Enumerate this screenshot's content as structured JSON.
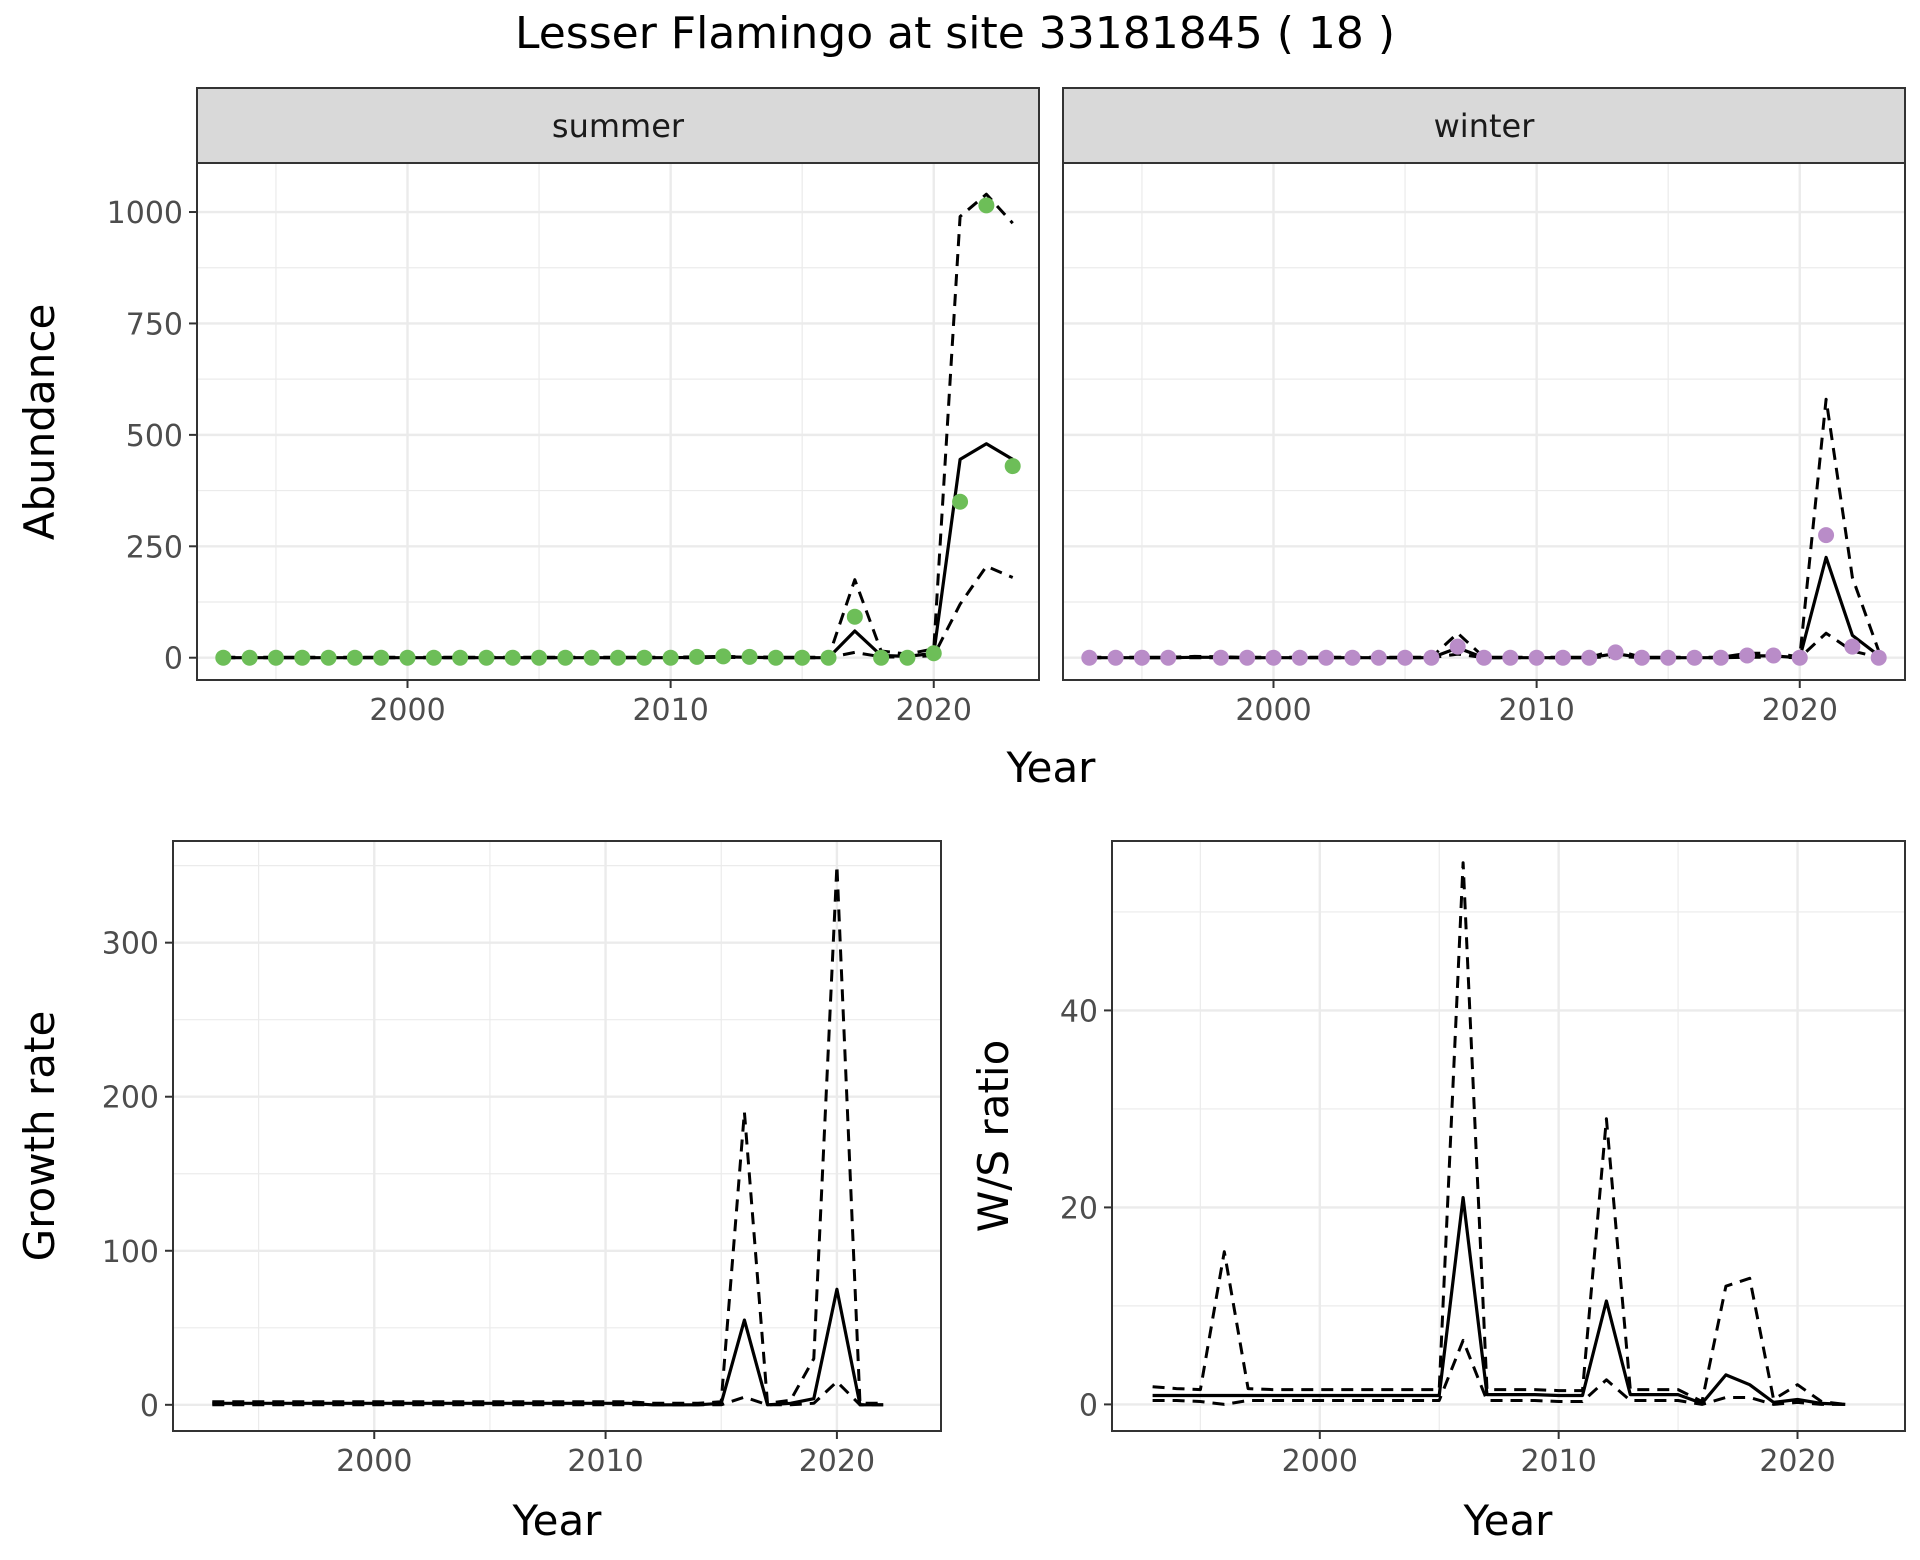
{
  "figure": {
    "title": "Lesser Flamingo at site 33181845 ( 18 )",
    "background": "#ffffff"
  },
  "colors": {
    "summer_points": "#6DBE58",
    "winter_points": "#B98CC8",
    "line": "#000000",
    "grid": "#EBEBEB",
    "strip_fill": "#D9D9D9",
    "axis_text": "#4D4D4D"
  },
  "chart_data": [
    {
      "type": "line",
      "panel": "abundance",
      "facets": [
        "summer",
        "winter"
      ],
      "xlabel": "Year",
      "ylabel": "Abundance",
      "xlim": [
        1992,
        2024
      ],
      "ylim": [
        -50,
        1110
      ],
      "xticks": [
        2000,
        2010,
        2020
      ],
      "yticks": [
        0,
        250,
        500,
        750,
        1000
      ],
      "grid": true,
      "series": [
        {
          "facet": "summer",
          "x": [
            1993,
            1994,
            1995,
            1996,
            1997,
            1998,
            1999,
            2000,
            2001,
            2002,
            2003,
            2004,
            2005,
            2006,
            2007,
            2008,
            2009,
            2010,
            2011,
            2012,
            2013,
            2014,
            2015,
            2016,
            2017,
            2018,
            2019,
            2020,
            2021,
            2022,
            2023
          ],
          "observed": [
            0,
            0,
            0,
            0,
            0,
            0,
            0,
            0,
            0,
            0,
            0,
            0,
            0,
            0,
            0,
            0,
            0,
            0,
            2,
            3,
            2,
            0,
            0,
            0,
            92,
            0,
            0,
            10,
            350,
            1015,
            430
          ],
          "fit": [
            0,
            0,
            0,
            0,
            0,
            0,
            0,
            0,
            0,
            0,
            0,
            0,
            0,
            0,
            0,
            0,
            0,
            0,
            1,
            2,
            1,
            0,
            0,
            0,
            60,
            5,
            3,
            10,
            445,
            480,
            445
          ],
          "upper": [
            1,
            1,
            1,
            1,
            1,
            1,
            1,
            1,
            1,
            1,
            1,
            1,
            1,
            1,
            1,
            1,
            1,
            1,
            2,
            3,
            2,
            1,
            1,
            1,
            175,
            15,
            8,
            20,
            990,
            1040,
            975
          ],
          "lower": [
            0,
            0,
            0,
            0,
            0,
            0,
            0,
            0,
            0,
            0,
            0,
            0,
            0,
            0,
            0,
            0,
            0,
            0,
            0,
            1,
            0,
            0,
            0,
            0,
            12,
            2,
            1,
            5,
            120,
            205,
            180
          ]
        },
        {
          "facet": "winter",
          "x": [
            1993,
            1994,
            1995,
            1996,
            1997,
            1998,
            1999,
            2000,
            2001,
            2002,
            2003,
            2004,
            2005,
            2006,
            2007,
            2008,
            2009,
            2010,
            2011,
            2012,
            2013,
            2014,
            2015,
            2016,
            2017,
            2018,
            2019,
            2020,
            2021,
            2022,
            2023
          ],
          "observed": [
            0,
            0,
            0,
            0,
            null,
            0,
            0,
            0,
            0,
            0,
            0,
            0,
            0,
            0,
            25,
            0,
            0,
            0,
            0,
            0,
            12,
            0,
            0,
            0,
            0,
            5,
            5,
            0,
            275,
            25,
            0
          ],
          "fit": [
            0,
            0,
            0,
            0,
            1,
            1,
            0,
            0,
            0,
            0,
            0,
            0,
            0,
            0,
            22,
            0,
            0,
            0,
            0,
            0,
            9,
            0,
            0,
            0,
            0,
            4,
            4,
            0,
            225,
            50,
            5
          ],
          "upper": [
            1,
            1,
            1,
            1,
            3,
            2,
            1,
            1,
            1,
            1,
            1,
            1,
            1,
            1,
            55,
            1,
            1,
            1,
            1,
            1,
            17,
            1,
            1,
            1,
            1,
            10,
            10,
            2,
            580,
            180,
            15
          ],
          "lower": [
            0,
            0,
            0,
            0,
            0,
            0,
            0,
            0,
            0,
            0,
            0,
            0,
            0,
            0,
            8,
            0,
            0,
            0,
            0,
            0,
            3,
            0,
            0,
            0,
            0,
            1,
            1,
            0,
            55,
            15,
            1
          ]
        }
      ]
    },
    {
      "type": "line",
      "panel": "growth",
      "xlabel": "Year",
      "ylabel": "Growth rate",
      "xlim": [
        1991.3,
        2024.5
      ],
      "ylim": [
        -17,
        366
      ],
      "xticks": [
        2000,
        2010,
        2020
      ],
      "yticks": [
        0,
        100,
        200,
        300
      ],
      "grid": true,
      "series": [
        {
          "x": [
            1993,
            1994,
            1995,
            1996,
            1997,
            1998,
            1999,
            2000,
            2001,
            2002,
            2003,
            2004,
            2005,
            2006,
            2007,
            2008,
            2009,
            2010,
            2011,
            2012,
            2013,
            2014,
            2015,
            2016,
            2017,
            2018,
            2019,
            2020,
            2021,
            2022
          ],
          "fit": [
            1,
            1,
            1,
            1,
            1,
            1,
            1,
            1,
            1,
            1,
            1,
            1,
            1,
            1,
            1,
            1,
            1,
            1,
            1,
            0,
            0,
            0,
            1,
            55,
            0,
            1,
            4,
            75,
            0,
            0
          ],
          "upper": [
            2,
            2,
            2,
            2,
            2,
            2,
            2,
            2,
            2,
            2,
            2,
            2,
            2,
            2,
            2,
            2,
            2,
            2,
            2,
            1,
            1,
            1,
            2,
            190,
            1,
            3,
            30,
            350,
            1,
            1
          ],
          "lower": [
            0,
            0,
            0,
            0,
            0,
            0,
            0,
            0,
            0,
            0,
            0,
            0,
            0,
            0,
            0,
            0,
            0,
            0,
            0,
            0,
            0,
            0,
            0,
            5,
            0,
            0,
            1,
            15,
            0,
            0
          ]
        }
      ]
    },
    {
      "type": "line",
      "panel": "ratio",
      "xlabel": "Year",
      "ylabel": "W/S ratio",
      "xlim": [
        1991.3,
        2024.5
      ],
      "ylim": [
        -2.7,
        57.2
      ],
      "xticks": [
        2000,
        2010,
        2020
      ],
      "yticks": [
        0,
        20,
        40
      ],
      "grid": true,
      "series": [
        {
          "x": [
            1993,
            1994,
            1995,
            1996,
            1997,
            1998,
            1999,
            2000,
            2001,
            2002,
            2003,
            2004,
            2005,
            2006,
            2007,
            2008,
            2009,
            2010,
            2011,
            2012,
            2013,
            2014,
            2015,
            2016,
            2017,
            2018,
            2019,
            2020,
            2021,
            2022
          ],
          "fit": [
            0.9,
            0.9,
            0.9,
            0.9,
            0.9,
            0.9,
            0.9,
            0.9,
            0.9,
            0.9,
            0.9,
            0.9,
            0.9,
            21,
            1,
            1,
            1,
            0.9,
            0.9,
            10.5,
            1,
            1,
            1,
            0.1,
            3,
            2,
            0.2,
            0.5,
            0.1,
            0
          ],
          "upper": [
            1.8,
            1.6,
            1.5,
            15.5,
            1.6,
            1.5,
            1.5,
            1.5,
            1.5,
            1.5,
            1.5,
            1.5,
            1.5,
            55,
            1.5,
            1.5,
            1.5,
            1.4,
            1.4,
            29,
            1.5,
            1.5,
            1.5,
            0.3,
            12,
            12.8,
            0.5,
            2,
            0.3,
            0
          ],
          "lower": [
            0.4,
            0.4,
            0.3,
            0,
            0.4,
            0.4,
            0.4,
            0.4,
            0.4,
            0.4,
            0.4,
            0.4,
            0.4,
            6.5,
            0.4,
            0.4,
            0.4,
            0.3,
            0.3,
            2.5,
            0.4,
            0.4,
            0.4,
            0,
            0.7,
            0.7,
            0,
            0.2,
            0,
            0
          ]
        }
      ]
    }
  ]
}
